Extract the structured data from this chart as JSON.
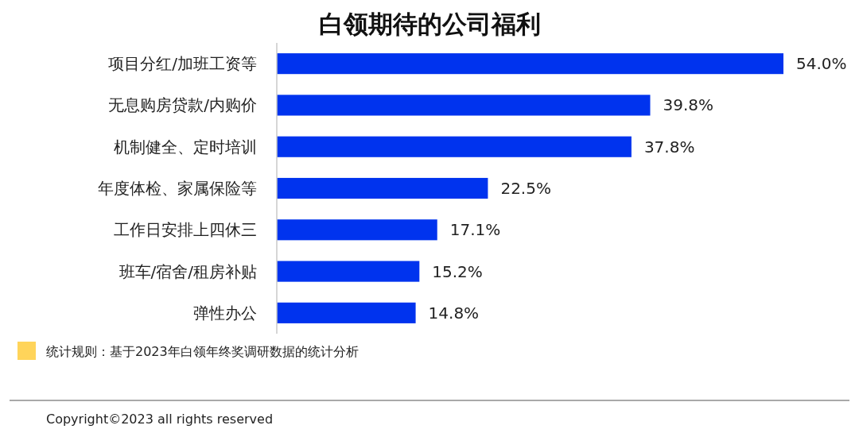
{
  "chart_data": {
    "type": "bar",
    "orientation": "horizontal",
    "title": "白领期待的公司福利",
    "categories": [
      "项目分红/加班工资等",
      "无息购房贷款/内购价",
      "机制健全、定时培训",
      "年度体检、家属保险等",
      "工作日安排上四休三",
      "班车/宿舍/租房补贴",
      "弹性办公"
    ],
    "values": [
      54.0,
      39.8,
      37.8,
      22.5,
      17.1,
      15.2,
      14.8
    ],
    "value_labels": [
      "54.0%",
      "39.8%",
      "37.8%",
      "22.5%",
      "17.1%",
      "15.2%",
      "14.8%"
    ],
    "color": "#0033ee",
    "tick_labels": "y",
    "annotations": [
      "统计规则：基于2023年白领年终奖调研数据的统计分析",
      "Copyright©2023 all rights reserved"
    ]
  }
}
